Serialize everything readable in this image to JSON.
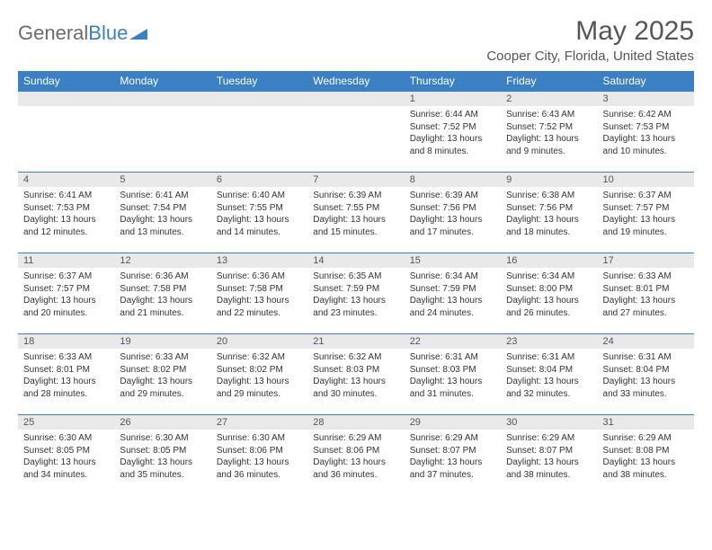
{
  "logo": {
    "text1": "General",
    "text2": "Blue"
  },
  "title": "May 2025",
  "location": "Cooper City, Florida, United States",
  "colors": {
    "header_bg": "#3b7fc4",
    "header_text": "#ffffff",
    "daynum_bg": "#e9e9e9",
    "border": "#3b7fc4",
    "text": "#333333",
    "title_text": "#555555"
  },
  "day_headers": [
    "Sunday",
    "Monday",
    "Tuesday",
    "Wednesday",
    "Thursday",
    "Friday",
    "Saturday"
  ],
  "weeks": [
    [
      {
        "n": "",
        "lines": []
      },
      {
        "n": "",
        "lines": []
      },
      {
        "n": "",
        "lines": []
      },
      {
        "n": "",
        "lines": []
      },
      {
        "n": "1",
        "lines": [
          "Sunrise: 6:44 AM",
          "Sunset: 7:52 PM",
          "Daylight: 13 hours",
          "and 8 minutes."
        ]
      },
      {
        "n": "2",
        "lines": [
          "Sunrise: 6:43 AM",
          "Sunset: 7:52 PM",
          "Daylight: 13 hours",
          "and 9 minutes."
        ]
      },
      {
        "n": "3",
        "lines": [
          "Sunrise: 6:42 AM",
          "Sunset: 7:53 PM",
          "Daylight: 13 hours",
          "and 10 minutes."
        ]
      }
    ],
    [
      {
        "n": "4",
        "lines": [
          "Sunrise: 6:41 AM",
          "Sunset: 7:53 PM",
          "Daylight: 13 hours",
          "and 12 minutes."
        ]
      },
      {
        "n": "5",
        "lines": [
          "Sunrise: 6:41 AM",
          "Sunset: 7:54 PM",
          "Daylight: 13 hours",
          "and 13 minutes."
        ]
      },
      {
        "n": "6",
        "lines": [
          "Sunrise: 6:40 AM",
          "Sunset: 7:55 PM",
          "Daylight: 13 hours",
          "and 14 minutes."
        ]
      },
      {
        "n": "7",
        "lines": [
          "Sunrise: 6:39 AM",
          "Sunset: 7:55 PM",
          "Daylight: 13 hours",
          "and 15 minutes."
        ]
      },
      {
        "n": "8",
        "lines": [
          "Sunrise: 6:39 AM",
          "Sunset: 7:56 PM",
          "Daylight: 13 hours",
          "and 17 minutes."
        ]
      },
      {
        "n": "9",
        "lines": [
          "Sunrise: 6:38 AM",
          "Sunset: 7:56 PM",
          "Daylight: 13 hours",
          "and 18 minutes."
        ]
      },
      {
        "n": "10",
        "lines": [
          "Sunrise: 6:37 AM",
          "Sunset: 7:57 PM",
          "Daylight: 13 hours",
          "and 19 minutes."
        ]
      }
    ],
    [
      {
        "n": "11",
        "lines": [
          "Sunrise: 6:37 AM",
          "Sunset: 7:57 PM",
          "Daylight: 13 hours",
          "and 20 minutes."
        ]
      },
      {
        "n": "12",
        "lines": [
          "Sunrise: 6:36 AM",
          "Sunset: 7:58 PM",
          "Daylight: 13 hours",
          "and 21 minutes."
        ]
      },
      {
        "n": "13",
        "lines": [
          "Sunrise: 6:36 AM",
          "Sunset: 7:58 PM",
          "Daylight: 13 hours",
          "and 22 minutes."
        ]
      },
      {
        "n": "14",
        "lines": [
          "Sunrise: 6:35 AM",
          "Sunset: 7:59 PM",
          "Daylight: 13 hours",
          "and 23 minutes."
        ]
      },
      {
        "n": "15",
        "lines": [
          "Sunrise: 6:34 AM",
          "Sunset: 7:59 PM",
          "Daylight: 13 hours",
          "and 24 minutes."
        ]
      },
      {
        "n": "16",
        "lines": [
          "Sunrise: 6:34 AM",
          "Sunset: 8:00 PM",
          "Daylight: 13 hours",
          "and 26 minutes."
        ]
      },
      {
        "n": "17",
        "lines": [
          "Sunrise: 6:33 AM",
          "Sunset: 8:01 PM",
          "Daylight: 13 hours",
          "and 27 minutes."
        ]
      }
    ],
    [
      {
        "n": "18",
        "lines": [
          "Sunrise: 6:33 AM",
          "Sunset: 8:01 PM",
          "Daylight: 13 hours",
          "and 28 minutes."
        ]
      },
      {
        "n": "19",
        "lines": [
          "Sunrise: 6:33 AM",
          "Sunset: 8:02 PM",
          "Daylight: 13 hours",
          "and 29 minutes."
        ]
      },
      {
        "n": "20",
        "lines": [
          "Sunrise: 6:32 AM",
          "Sunset: 8:02 PM",
          "Daylight: 13 hours",
          "and 29 minutes."
        ]
      },
      {
        "n": "21",
        "lines": [
          "Sunrise: 6:32 AM",
          "Sunset: 8:03 PM",
          "Daylight: 13 hours",
          "and 30 minutes."
        ]
      },
      {
        "n": "22",
        "lines": [
          "Sunrise: 6:31 AM",
          "Sunset: 8:03 PM",
          "Daylight: 13 hours",
          "and 31 minutes."
        ]
      },
      {
        "n": "23",
        "lines": [
          "Sunrise: 6:31 AM",
          "Sunset: 8:04 PM",
          "Daylight: 13 hours",
          "and 32 minutes."
        ]
      },
      {
        "n": "24",
        "lines": [
          "Sunrise: 6:31 AM",
          "Sunset: 8:04 PM",
          "Daylight: 13 hours",
          "and 33 minutes."
        ]
      }
    ],
    [
      {
        "n": "25",
        "lines": [
          "Sunrise: 6:30 AM",
          "Sunset: 8:05 PM",
          "Daylight: 13 hours",
          "and 34 minutes."
        ]
      },
      {
        "n": "26",
        "lines": [
          "Sunrise: 6:30 AM",
          "Sunset: 8:05 PM",
          "Daylight: 13 hours",
          "and 35 minutes."
        ]
      },
      {
        "n": "27",
        "lines": [
          "Sunrise: 6:30 AM",
          "Sunset: 8:06 PM",
          "Daylight: 13 hours",
          "and 36 minutes."
        ]
      },
      {
        "n": "28",
        "lines": [
          "Sunrise: 6:29 AM",
          "Sunset: 8:06 PM",
          "Daylight: 13 hours",
          "and 36 minutes."
        ]
      },
      {
        "n": "29",
        "lines": [
          "Sunrise: 6:29 AM",
          "Sunset: 8:07 PM",
          "Daylight: 13 hours",
          "and 37 minutes."
        ]
      },
      {
        "n": "30",
        "lines": [
          "Sunrise: 6:29 AM",
          "Sunset: 8:07 PM",
          "Daylight: 13 hours",
          "and 38 minutes."
        ]
      },
      {
        "n": "31",
        "lines": [
          "Sunrise: 6:29 AM",
          "Sunset: 8:08 PM",
          "Daylight: 13 hours",
          "and 38 minutes."
        ]
      }
    ]
  ]
}
